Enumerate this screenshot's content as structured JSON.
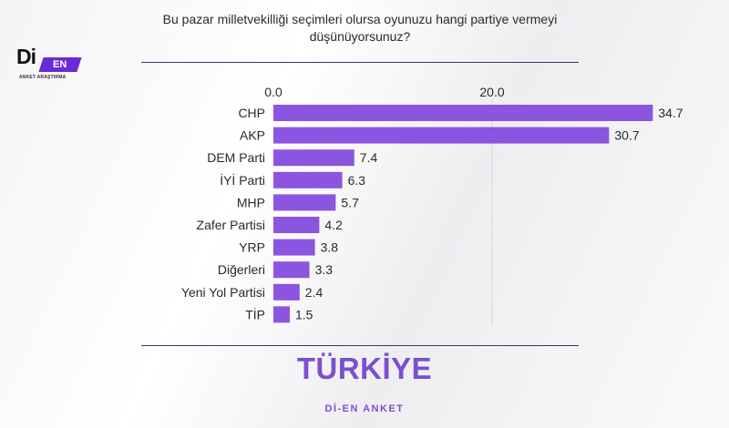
{
  "brand": {
    "logo_main": "Di",
    "logo_tag": "EN",
    "logo_sub": "ANKET ARAŞTIRMA"
  },
  "header": {
    "question_line1": "Bu pazar milletvekilliği seçimleri olursa oyunuzu hangi partiye vermeyi",
    "question_line2": "düşünüyorsunuz?"
  },
  "chart_data": {
    "type": "bar",
    "orientation": "horizontal",
    "categories": [
      "CHP",
      "AKP",
      "DEM Parti",
      "İYİ Parti",
      "MHP",
      "Zafer Partisi",
      "YRP",
      "Diğerleri",
      "Yeni Yol Partisi",
      "TİP"
    ],
    "values": [
      34.7,
      30.7,
      7.4,
      6.3,
      5.7,
      4.2,
      3.8,
      3.3,
      2.4,
      1.5
    ],
    "value_labels": [
      "34.7",
      "30.7",
      "7.4",
      "6.3",
      "5.7",
      "4.2",
      "3.8",
      "3.3",
      "2.4",
      "1.5"
    ],
    "x_ticks": [
      0,
      20
    ],
    "x_tick_labels": [
      "0.0",
      "20.0"
    ],
    "xlim": [
      0,
      36
    ],
    "axis_position": "top",
    "grid": true,
    "bar_color": "#8b55e0"
  },
  "footer": {
    "country": "TÜRKİYE",
    "source": "Dİ-EN ANKET"
  }
}
